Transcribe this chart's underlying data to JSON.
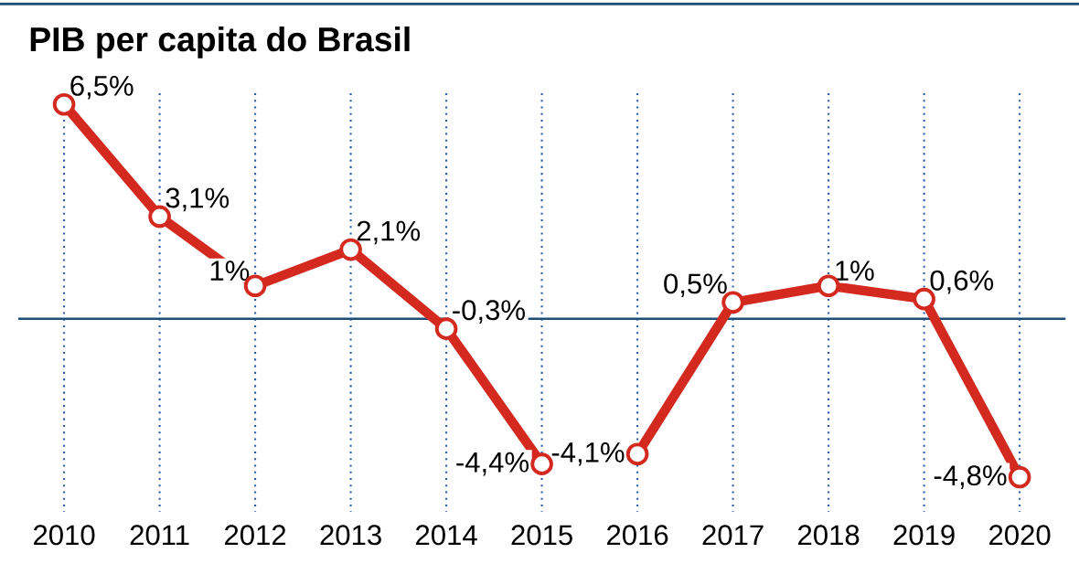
{
  "chart_data": {
    "type": "line",
    "title": "PIB per capita do Brasil",
    "categories": [
      "2010",
      "2011",
      "2012",
      "2013",
      "2014",
      "2015",
      "2016",
      "2017",
      "2018",
      "2019",
      "2020"
    ],
    "values": [
      6.5,
      3.1,
      1,
      2.1,
      -0.3,
      -4.4,
      -4.1,
      0.5,
      1,
      0.6,
      -4.8
    ],
    "value_labels": [
      "6,5%",
      "3,1%",
      "1%",
      "2,1%",
      "-0,3%",
      "-4,4%",
      "-4,1%",
      "0,5%",
      "1%",
      "0,6%",
      "-4,8%"
    ],
    "color": "#d3291f",
    "marker": "circle",
    "tick_labels": "x",
    "grid": "x",
    "ref_lines": [
      {
        "axis": "y",
        "value": 0,
        "color": "#1f4e79"
      }
    ]
  }
}
